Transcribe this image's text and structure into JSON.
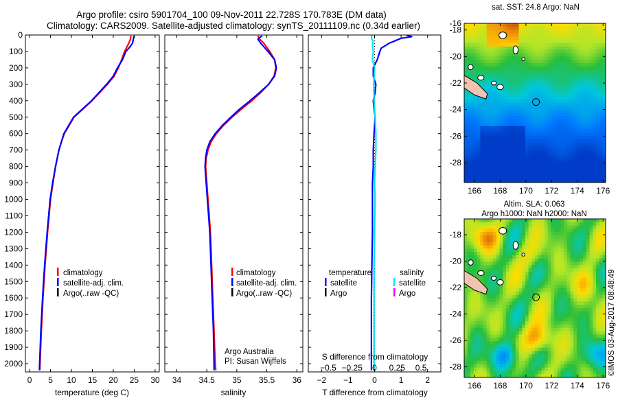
{
  "title": {
    "line1": "Argo profile: csiro 5901704_100 09-Nov-2011 22.728S 170.783E (DM data)",
    "line2": "Climatology: CARS2009. Satellite-adjusted climatology: synTS_20111109.nc (0.34d earlier)"
  },
  "colors": {
    "climatology": "#ff0000",
    "satellite": "#0000ff",
    "argo": "#000000",
    "salinity_sat": "#00e5ee",
    "salinity_argo": "#ff00ff"
  },
  "depth_axis": {
    "ylim": [
      0,
      2050
    ],
    "ticks": [
      0,
      100,
      200,
      300,
      400,
      500,
      600,
      700,
      800,
      900,
      1000,
      1100,
      1200,
      1300,
      1400,
      1500,
      1600,
      1700,
      1800,
      1900,
      2000
    ],
    "tick_labels": [
      "0",
      "100",
      "200",
      "300",
      "400",
      "500",
      "600",
      "700",
      "800",
      "900",
      "1000",
      "1100",
      "1200",
      "1300",
      "1400",
      "1500",
      "1600",
      "1700",
      "1800",
      "1900",
      "2000"
    ]
  },
  "chart_data": [
    {
      "type": "line",
      "xlabel": "temperature (deg C)",
      "xlim": [
        -1,
        31
      ],
      "xticks": [
        0,
        5,
        10,
        15,
        20,
        25,
        30
      ],
      "xtick_labels": [
        "0",
        "5",
        "10",
        "15",
        "20",
        "25",
        "30"
      ],
      "legend": {
        "placement": "lower-left",
        "entries": [
          {
            "label": "climatology",
            "color": "#ff0000"
          },
          {
            "label": "satellite-adj. clim.",
            "color": "#0000ff"
          },
          {
            "label": "Argo(..raw -QC)",
            "color": "#000000"
          }
        ]
      },
      "series": [
        {
          "legend_index": 0,
          "color": "#ff0000",
          "depth": [
            5,
            25,
            50,
            75,
            100,
            150,
            200,
            250,
            300,
            400,
            500,
            600,
            650,
            700,
            800,
            900,
            1000,
            1200,
            1400,
            1600,
            1800,
            2000,
            2040
          ],
          "x": [
            24.2,
            24.1,
            23.7,
            23.2,
            22.7,
            22.0,
            21.2,
            20.2,
            18.6,
            14.9,
            10.6,
            8.3,
            7.6,
            7.0,
            6.2,
            5.6,
            5.0,
            4.3,
            3.7,
            3.2,
            2.8,
            2.5,
            2.45
          ]
        },
        {
          "legend_index": 1,
          "color": "#0000ff",
          "depth": [
            5,
            25,
            50,
            75,
            100,
            150,
            200,
            250,
            300,
            400,
            500,
            600,
            650,
            700,
            800,
            900,
            1000,
            1200,
            1400,
            1600,
            1800,
            2000,
            2040
          ],
          "x": [
            25.0,
            24.8,
            24.6,
            23.9,
            23.0,
            22.2,
            21.0,
            20.0,
            18.4,
            14.8,
            10.5,
            8.2,
            7.6,
            7.0,
            6.2,
            5.5,
            4.9,
            4.2,
            3.6,
            3.1,
            2.7,
            2.4,
            2.35
          ]
        }
      ]
    },
    {
      "type": "line",
      "xlabel": "salinity",
      "xlim": [
        33.8,
        36.1
      ],
      "xticks": [
        34,
        34.5,
        35,
        35.5,
        36
      ],
      "xtick_labels": [
        "34",
        "34.5",
        "35",
        "35.5",
        "36"
      ],
      "legend": {
        "placement": "lower-left",
        "entries": [
          {
            "label": "climatology",
            "color": "#ff0000"
          },
          {
            "label": "satellite-adj. clim.",
            "color": "#0000ff"
          },
          {
            "label": "Argo(..raw -QC)",
            "color": "#000000"
          }
        ]
      },
      "annotation": {
        "line1": "Argo Australia",
        "line2": "PI: Susan Wijffels"
      },
      "series": [
        {
          "legend_index": 0,
          "color": "#ff0000",
          "depth": [
            5,
            25,
            50,
            100,
            150,
            200,
            250,
            300,
            350,
            400,
            450,
            500,
            550,
            600,
            650,
            700,
            750,
            800,
            850,
            900,
            1000,
            1100,
            1200,
            1300,
            1400,
            1600,
            1800,
            2000,
            2040
          ],
          "x": [
            35.35,
            35.38,
            35.45,
            35.55,
            35.63,
            35.65,
            35.62,
            35.53,
            35.4,
            35.25,
            35.08,
            34.92,
            34.78,
            34.66,
            34.57,
            34.52,
            34.49,
            34.48,
            34.49,
            34.5,
            34.52,
            34.54,
            34.56,
            34.57,
            34.58,
            34.6,
            34.62,
            34.64,
            34.65
          ]
        },
        {
          "legend_index": 1,
          "color": "#0000ff",
          "depth": [
            5,
            25,
            50,
            100,
            150,
            200,
            250,
            300,
            350,
            400,
            450,
            500,
            550,
            600,
            650,
            700,
            750,
            800,
            850,
            900,
            1000,
            1100,
            1200,
            1300,
            1400,
            1600,
            1800,
            2000,
            2040
          ],
          "x": [
            35.42,
            35.35,
            35.4,
            35.52,
            35.63,
            35.66,
            35.63,
            35.53,
            35.38,
            35.22,
            35.05,
            34.9,
            34.76,
            34.64,
            34.55,
            34.5,
            34.48,
            34.47,
            34.48,
            34.49,
            34.51,
            34.53,
            34.55,
            34.56,
            34.57,
            34.59,
            34.61,
            34.62,
            34.62
          ]
        }
      ]
    },
    {
      "type": "line",
      "xlabel": "T difference from climatology",
      "xlabel_top": "S difference from climatology",
      "xlim": [
        -2.5,
        2.5
      ],
      "xticks": [
        -2,
        -1,
        0,
        1,
        2
      ],
      "xtick_labels": [
        "−2",
        "−1",
        "0",
        "1",
        "2"
      ],
      "xticks_top_labels": [
        "−0.5",
        "−0.25",
        "0",
        "0.25",
        "0.5"
      ],
      "legend": {
        "placement": "lower-left",
        "temperature_header": "temperature",
        "salinity_header": "salinity",
        "entries": [
          {
            "label": "satellite",
            "color": "#0000ff",
            "group": "temperature"
          },
          {
            "label": "Argo",
            "color": "#000000",
            "group": "temperature"
          },
          {
            "label": "satellite",
            "color": "#00e5ee",
            "group": "salinity"
          },
          {
            "label": "Argo",
            "color": "#ff00ff",
            "group": "salinity"
          }
        ]
      },
      "series": [
        {
          "legend_index": 0,
          "color": "#0000ff",
          "depth": [
            0,
            10,
            20,
            30,
            40,
            50,
            60,
            70,
            80,
            100,
            150,
            200,
            250,
            300,
            350,
            400,
            450,
            500,
            600,
            700,
            800,
            900,
            1000,
            1200,
            1400,
            1600,
            1800,
            2000,
            2040
          ],
          "x": [
            1.2,
            1.4,
            1.0,
            0.85,
            0.7,
            0.55,
            0.45,
            0.35,
            0.25,
            0.2,
            0.1,
            -0.05,
            -0.05,
            0.05,
            0.02,
            -0.05,
            -0.02,
            0.02,
            -0.02,
            -0.05,
            -0.05,
            -0.08,
            -0.08,
            -0.08,
            -0.1,
            -0.12,
            -0.12,
            -0.12,
            -0.12
          ]
        },
        {
          "legend_index": 2,
          "color": "#00e5ee",
          "depth": [
            0,
            20,
            40,
            60,
            100,
            150,
            200,
            300,
            400,
            500,
            600,
            700,
            800,
            900,
            1000,
            1200,
            1400,
            1600,
            1800,
            2000,
            2040
          ],
          "x": [
            -0.1,
            -0.12,
            -0.05,
            -0.08,
            -0.05,
            -0.08,
            0.0,
            -0.03,
            -0.02,
            0.02,
            0.05,
            0.05,
            0.02,
            0.0,
            0.02,
            0.0,
            -0.02,
            -0.02,
            -0.02,
            -0.02,
            -0.02
          ]
        }
      ]
    },
    {
      "type": "heatmap",
      "title": "sat. SST: 24.8 Argo: NaN",
      "xlim": [
        165.2,
        176.2
      ],
      "ylim": [
        -28.8,
        -16.8
      ],
      "xticks": [
        166,
        168,
        170,
        172,
        174,
        176
      ],
      "yticks": [
        -16,
        -18,
        -20,
        -22,
        -24,
        -26,
        -28
      ],
      "xtick_labels": [
        "166",
        "168",
        "170",
        "172",
        "174",
        "176"
      ],
      "ytick_labels": [
        "-16",
        "-18",
        "-20",
        "-22",
        "-24",
        "-26",
        "-28"
      ],
      "marker": {
        "lon": 170.783,
        "lat": -22.728
      }
    },
    {
      "type": "heatmap",
      "title_line1": "Altim. SLA: 0.063",
      "title_line2": "Argo h1000: NaN h2000: NaN",
      "xlim": [
        165.2,
        176.2
      ],
      "ylim": [
        -28.8,
        -16.8
      ],
      "xticks": [
        166,
        168,
        170,
        172,
        174,
        176
      ],
      "yticks": [
        -18,
        -20,
        -22,
        -24,
        -26,
        -28
      ],
      "xtick_labels": [
        "166",
        "168",
        "170",
        "172",
        "174",
        "176"
      ],
      "ytick_labels": [
        "-18",
        "-20",
        "-22",
        "-24",
        "-26",
        "-28"
      ],
      "marker": {
        "lon": 170.783,
        "lat": -22.728
      }
    }
  ],
  "side_stamp": "©IMOS 03-Aug-2017 08:48:49"
}
